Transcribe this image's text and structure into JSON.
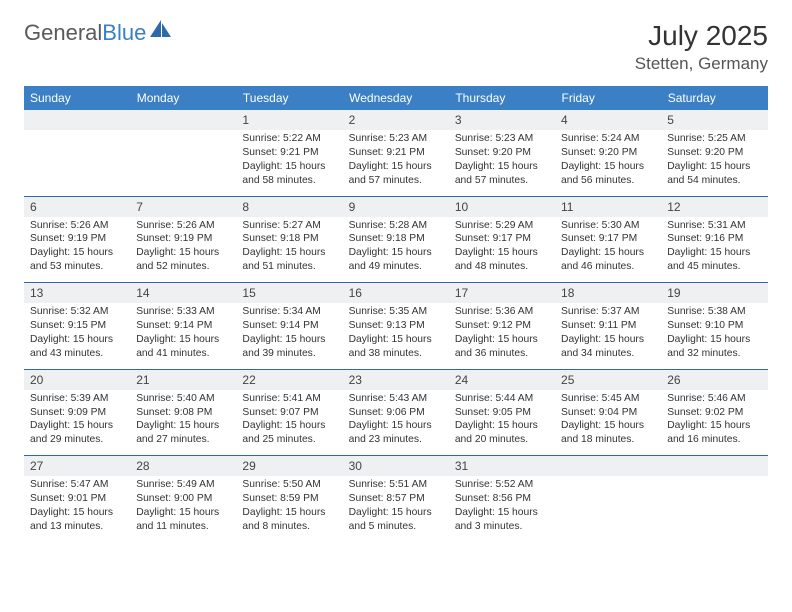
{
  "logo": {
    "text_gray": "General",
    "text_blue": "Blue"
  },
  "title": {
    "month": "July 2025",
    "location": "Stetten, Germany"
  },
  "colors": {
    "header_bg": "#3b7fc4",
    "header_text": "#ffffff",
    "daynum_bg": "#eef0f2",
    "border": "#2f6aa8",
    "text": "#333333",
    "logo_gray": "#5a5a5a",
    "logo_blue": "#3b7fc4"
  },
  "columns": [
    "Sunday",
    "Monday",
    "Tuesday",
    "Wednesday",
    "Thursday",
    "Friday",
    "Saturday"
  ],
  "weeks": [
    [
      null,
      null,
      {
        "n": "1",
        "sr": "5:22 AM",
        "ss": "9:21 PM",
        "dl": "15 hours and 58 minutes."
      },
      {
        "n": "2",
        "sr": "5:23 AM",
        "ss": "9:21 PM",
        "dl": "15 hours and 57 minutes."
      },
      {
        "n": "3",
        "sr": "5:23 AM",
        "ss": "9:20 PM",
        "dl": "15 hours and 57 minutes."
      },
      {
        "n": "4",
        "sr": "5:24 AM",
        "ss": "9:20 PM",
        "dl": "15 hours and 56 minutes."
      },
      {
        "n": "5",
        "sr": "5:25 AM",
        "ss": "9:20 PM",
        "dl": "15 hours and 54 minutes."
      }
    ],
    [
      {
        "n": "6",
        "sr": "5:26 AM",
        "ss": "9:19 PM",
        "dl": "15 hours and 53 minutes."
      },
      {
        "n": "7",
        "sr": "5:26 AM",
        "ss": "9:19 PM",
        "dl": "15 hours and 52 minutes."
      },
      {
        "n": "8",
        "sr": "5:27 AM",
        "ss": "9:18 PM",
        "dl": "15 hours and 51 minutes."
      },
      {
        "n": "9",
        "sr": "5:28 AM",
        "ss": "9:18 PM",
        "dl": "15 hours and 49 minutes."
      },
      {
        "n": "10",
        "sr": "5:29 AM",
        "ss": "9:17 PM",
        "dl": "15 hours and 48 minutes."
      },
      {
        "n": "11",
        "sr": "5:30 AM",
        "ss": "9:17 PM",
        "dl": "15 hours and 46 minutes."
      },
      {
        "n": "12",
        "sr": "5:31 AM",
        "ss": "9:16 PM",
        "dl": "15 hours and 45 minutes."
      }
    ],
    [
      {
        "n": "13",
        "sr": "5:32 AM",
        "ss": "9:15 PM",
        "dl": "15 hours and 43 minutes."
      },
      {
        "n": "14",
        "sr": "5:33 AM",
        "ss": "9:14 PM",
        "dl": "15 hours and 41 minutes."
      },
      {
        "n": "15",
        "sr": "5:34 AM",
        "ss": "9:14 PM",
        "dl": "15 hours and 39 minutes."
      },
      {
        "n": "16",
        "sr": "5:35 AM",
        "ss": "9:13 PM",
        "dl": "15 hours and 38 minutes."
      },
      {
        "n": "17",
        "sr": "5:36 AM",
        "ss": "9:12 PM",
        "dl": "15 hours and 36 minutes."
      },
      {
        "n": "18",
        "sr": "5:37 AM",
        "ss": "9:11 PM",
        "dl": "15 hours and 34 minutes."
      },
      {
        "n": "19",
        "sr": "5:38 AM",
        "ss": "9:10 PM",
        "dl": "15 hours and 32 minutes."
      }
    ],
    [
      {
        "n": "20",
        "sr": "5:39 AM",
        "ss": "9:09 PM",
        "dl": "15 hours and 29 minutes."
      },
      {
        "n": "21",
        "sr": "5:40 AM",
        "ss": "9:08 PM",
        "dl": "15 hours and 27 minutes."
      },
      {
        "n": "22",
        "sr": "5:41 AM",
        "ss": "9:07 PM",
        "dl": "15 hours and 25 minutes."
      },
      {
        "n": "23",
        "sr": "5:43 AM",
        "ss": "9:06 PM",
        "dl": "15 hours and 23 minutes."
      },
      {
        "n": "24",
        "sr": "5:44 AM",
        "ss": "9:05 PM",
        "dl": "15 hours and 20 minutes."
      },
      {
        "n": "25",
        "sr": "5:45 AM",
        "ss": "9:04 PM",
        "dl": "15 hours and 18 minutes."
      },
      {
        "n": "26",
        "sr": "5:46 AM",
        "ss": "9:02 PM",
        "dl": "15 hours and 16 minutes."
      }
    ],
    [
      {
        "n": "27",
        "sr": "5:47 AM",
        "ss": "9:01 PM",
        "dl": "15 hours and 13 minutes."
      },
      {
        "n": "28",
        "sr": "5:49 AM",
        "ss": "9:00 PM",
        "dl": "15 hours and 11 minutes."
      },
      {
        "n": "29",
        "sr": "5:50 AM",
        "ss": "8:59 PM",
        "dl": "15 hours and 8 minutes."
      },
      {
        "n": "30",
        "sr": "5:51 AM",
        "ss": "8:57 PM",
        "dl": "15 hours and 5 minutes."
      },
      {
        "n": "31",
        "sr": "5:52 AM",
        "ss": "8:56 PM",
        "dl": "15 hours and 3 minutes."
      },
      null,
      null
    ]
  ],
  "labels": {
    "sunrise": "Sunrise:",
    "sunset": "Sunset:",
    "daylight": "Daylight:"
  }
}
